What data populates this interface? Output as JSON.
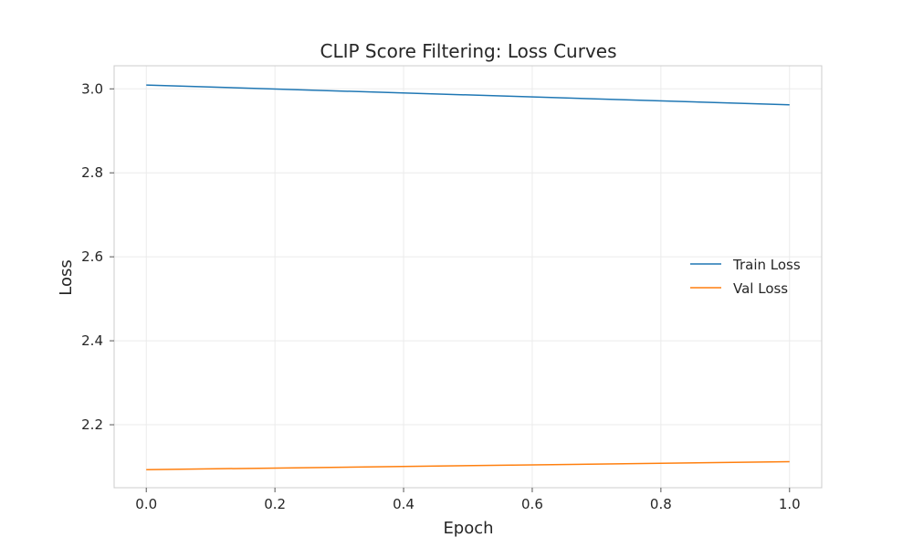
{
  "chart_data": {
    "type": "line",
    "title": "CLIP Score Filtering: Loss Curves",
    "xlabel": "Epoch",
    "ylabel": "Loss",
    "xlim": [
      -0.05,
      1.05
    ],
    "ylim": [
      2.05,
      3.055
    ],
    "xticks": [
      0.0,
      0.2,
      0.4,
      0.6,
      0.8,
      1.0
    ],
    "xtick_labels": [
      "0.0",
      "0.2",
      "0.4",
      "0.6",
      "0.8",
      "1.0"
    ],
    "yticks": [
      2.2,
      2.4,
      2.6,
      2.8,
      3.0
    ],
    "ytick_labels": [
      "2.2",
      "2.4",
      "2.6",
      "2.8",
      "3.0"
    ],
    "grid": true,
    "legend_position": "center-right",
    "series": [
      {
        "name": "Train Loss",
        "color": "#1f77b4",
        "x": [
          0.0,
          1.0
        ],
        "y": [
          3.009,
          2.962
        ]
      },
      {
        "name": "Val Loss",
        "color": "#ff7f0e",
        "x": [
          0.0,
          1.0
        ],
        "y": [
          2.093,
          2.112
        ]
      }
    ]
  }
}
